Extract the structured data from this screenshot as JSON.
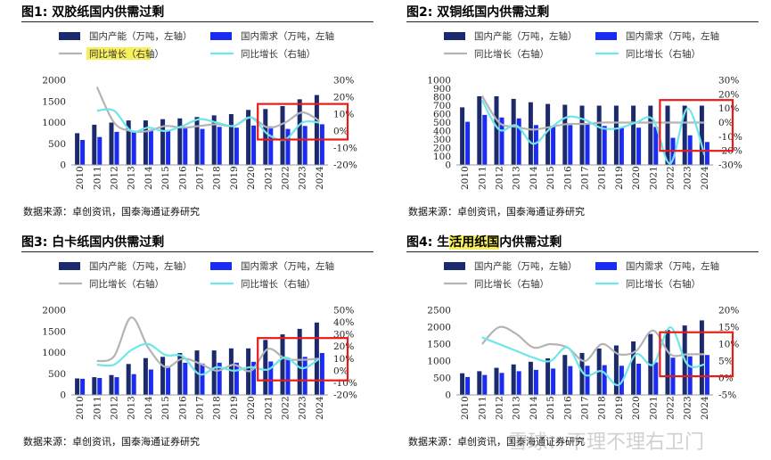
{
  "colors": {
    "prod_bar": "#1b2a6b",
    "demand_bar": "#1b2cf2",
    "prod_growth": "#b4b4b4",
    "demand_growth": "#6fe6ea",
    "box": "#e81b1b"
  },
  "chart_data": [
    {
      "type": "bar+line",
      "title_prefix": "图1:",
      "title_plain_1": " 双胶纸国内供需过剩",
      "title_highlight": "",
      "title_plain_2": "",
      "legend": [
        "国内产能（万吨，左轴）",
        "国内需求（万吨，左轴",
        "同比增长（右轴）",
        "同比增长（右轴）"
      ],
      "legend_highlight_index": 2,
      "categories": [
        "2010",
        "2011",
        "2012",
        "2013",
        "2014",
        "2015",
        "2016",
        "2017",
        "2018",
        "2019",
        "2020",
        "2021",
        "2022",
        "2023",
        "2024"
      ],
      "series": [
        {
          "name": "国内产能",
          "axis": "left",
          "kind": "bar",
          "values": [
            750,
            950,
            1000,
            1050,
            1050,
            1080,
            1100,
            1130,
            1170,
            1200,
            1300,
            1320,
            1390,
            1550,
            1650
          ]
        },
        {
          "name": "国内需求",
          "axis": "left",
          "kind": "bar",
          "values": [
            590,
            660,
            780,
            800,
            820,
            800,
            870,
            850,
            900,
            880,
            930,
            910,
            850,
            920,
            960
          ]
        },
        {
          "name": "产能同比增长",
          "axis": "right",
          "kind": "line",
          "values": [
            null,
            26,
            5,
            0,
            0,
            3,
            2,
            3,
            4,
            3,
            8,
            2,
            5,
            11,
            6
          ]
        },
        {
          "name": "需求同比增长",
          "axis": "right",
          "kind": "line",
          "values": [
            null,
            12,
            12,
            0,
            2,
            0,
            3,
            7,
            5,
            3,
            8,
            -2,
            -5,
            5,
            5
          ]
        }
      ],
      "ylim_left": [
        0,
        2000
      ],
      "yticks_left": [
        "0",
        "500",
        "1000",
        "1500",
        "2000"
      ],
      "ylim_right": [
        -20,
        30
      ],
      "yticks_right": [
        "-20%",
        "-10%",
        "0%",
        "10%",
        "20%",
        "30%"
      ],
      "highlight_box": {
        "from_index": 11,
        "to_index": 14,
        "ylow": -5,
        "yhigh": 16
      },
      "source": "数据来源：卓创资讯，国泰海通证券研究"
    },
    {
      "type": "bar+line",
      "title_prefix": "图2:",
      "title_plain_1": " 双铜纸国内供需过剩",
      "title_highlight": "",
      "title_plain_2": "",
      "legend": [
        "国内产能（万吨，左轴）",
        "国内需求（万吨，左轴",
        "同比增长（右轴）",
        "同比增长（右轴）"
      ],
      "legend_highlight_index": -1,
      "categories": [
        "2010",
        "2011",
        "2012",
        "2013",
        "2014",
        "2015",
        "2016",
        "2017",
        "2018",
        "2019",
        "2020",
        "2021",
        "2022",
        "2023",
        "2024"
      ],
      "series": [
        {
          "name": "国内产能",
          "axis": "left",
          "kind": "bar",
          "values": [
            680,
            810,
            810,
            780,
            740,
            720,
            710,
            700,
            700,
            700,
            700,
            700,
            700,
            700,
            700
          ]
        },
        {
          "name": "国内需求",
          "axis": "left",
          "kind": "bar",
          "values": [
            510,
            590,
            560,
            550,
            470,
            450,
            470,
            480,
            460,
            440,
            440,
            450,
            320,
            350,
            270
          ]
        },
        {
          "name": "产能同比增长",
          "axis": "right",
          "kind": "line",
          "values": [
            null,
            19,
            0,
            -3,
            -5,
            -3,
            -1,
            -1,
            0,
            0,
            0,
            0,
            0,
            0,
            0
          ]
        },
        {
          "name": "需求同比增长",
          "axis": "right",
          "kind": "line",
          "values": [
            null,
            16,
            -5,
            -2,
            -15,
            -4,
            4,
            2,
            -4,
            -4,
            0,
            2,
            -29,
            10,
            -23
          ]
        }
      ],
      "ylim_left": [
        0,
        1000
      ],
      "yticks_left": [
        "0",
        "100",
        "200",
        "300",
        "400",
        "500",
        "600",
        "700",
        "800",
        "900",
        "1000"
      ],
      "ylim_right": [
        -30,
        30
      ],
      "yticks_right": [
        "-30%",
        "-20%",
        "-10%",
        "0%",
        "10%",
        "20%",
        "30%"
      ],
      "highlight_box": {
        "from_index": 12,
        "to_index": 14,
        "ylow": -20,
        "yhigh": 16
      },
      "source": "数据来源：卓创资讯，国泰海通证券研究"
    },
    {
      "type": "bar+line",
      "title_prefix": "图3:",
      "title_plain_1": " 白卡纸国内供需过剩",
      "title_highlight": "",
      "title_plain_2": "",
      "legend": [
        "国内产能（万吨，左轴）",
        "国内需求（万吨，左轴",
        "同比增长（右轴）",
        "同比增长（右轴）"
      ],
      "legend_highlight_index": -1,
      "categories": [
        "2010",
        "2011",
        "2012",
        "2013",
        "2014",
        "2015",
        "2016",
        "2017",
        "2018",
        "2019",
        "2020",
        "2021",
        "2022",
        "2023",
        "2024"
      ],
      "series": [
        {
          "name": "国内产能",
          "axis": "left",
          "kind": "bar",
          "values": [
            390,
            420,
            470,
            730,
            870,
            900,
            990,
            1050,
            1050,
            1100,
            1100,
            1300,
            1430,
            1560,
            1710
          ]
        },
        {
          "name": "国内需求",
          "axis": "left",
          "kind": "bar",
          "values": [
            380,
            400,
            420,
            490,
            600,
            680,
            760,
            740,
            760,
            760,
            780,
            790,
            880,
            900,
            990
          ]
        },
        {
          "name": "产能同比增长",
          "axis": "right",
          "kind": "line",
          "values": [
            null,
            8,
            12,
            44,
            19,
            3,
            10,
            6,
            0,
            5,
            0,
            18,
            10,
            9,
            10
          ]
        },
        {
          "name": "需求同比增长",
          "axis": "right",
          "kind": "line",
          "values": [
            null,
            5,
            5,
            17,
            22,
            13,
            12,
            -3,
            3,
            0,
            3,
            1,
            11,
            2,
            10
          ]
        }
      ],
      "ylim_left": [
        0,
        2000
      ],
      "yticks_left": [
        "0",
        "500",
        "1000",
        "1500",
        "2000"
      ],
      "ylim_right": [
        -20,
        50
      ],
      "yticks_right": [
        "-20%",
        "-10%",
        "0%",
        "10%",
        "20%",
        "30%",
        "40%",
        "50%"
      ],
      "highlight_box": {
        "from_index": 11,
        "to_index": 14,
        "ylow": -8,
        "yhigh": 27
      },
      "source": "数据来源：卓创资讯，国泰海通证券研究"
    },
    {
      "type": "bar+line",
      "title_prefix": "图4:",
      "title_plain_1": " 生",
      "title_highlight": "活用纸国",
      "title_plain_2": "内供需过剩",
      "legend": [
        "国内产能（万吨，左轴）",
        "国内需求（万吨，左轴",
        "同比增长（右轴）",
        "同比增长（右轴）"
      ],
      "legend_highlight_index": -1,
      "categories": [
        "2010",
        "2011",
        "2012",
        "2013",
        "2014",
        "2015",
        "2016",
        "2017",
        "2018",
        "2019",
        "2020",
        "2021",
        "2022",
        "2023",
        "2024"
      ],
      "series": [
        {
          "name": "国内产能",
          "axis": "left",
          "kind": "bar",
          "values": [
            640,
            700,
            800,
            900,
            980,
            1080,
            1180,
            1240,
            1370,
            1460,
            1580,
            1800,
            1920,
            2050,
            2200
          ]
        },
        {
          "name": "国内需求",
          "axis": "left",
          "kind": "bar",
          "values": [
            530,
            590,
            650,
            700,
            740,
            780,
            850,
            860,
            880,
            860,
            920,
            960,
            1100,
            1140,
            1180
          ]
        },
        {
          "name": "产能同比增长",
          "axis": "right",
          "kind": "line",
          "values": [
            null,
            10,
            15,
            13,
            9,
            10,
            9,
            5,
            10,
            7,
            8,
            14,
            7,
            7,
            7
          ]
        },
        {
          "name": "需求同比增长",
          "axis": "right",
          "kind": "line",
          "values": [
            null,
            12,
            10,
            8,
            6,
            5,
            9,
            1,
            2,
            -2,
            7,
            4,
            15,
            4,
            4
          ]
        }
      ],
      "ylim_left": [
        0,
        2500
      ],
      "yticks_left": [
        "0",
        "500",
        "1000",
        "1500",
        "2000",
        "2500"
      ],
      "ylim_right": [
        -5,
        20
      ],
      "yticks_right": [
        "-5%",
        "0%",
        "5%",
        "10%",
        "15%",
        "20%"
      ],
      "highlight_box": {
        "from_index": 12,
        "to_index": 14,
        "ylow": 0.5,
        "yhigh": 13.5
      },
      "source": "数据来源：卓创资讯，国泰海通证券研究"
    }
  ],
  "watermark": "雪球：不理不理右卫门"
}
